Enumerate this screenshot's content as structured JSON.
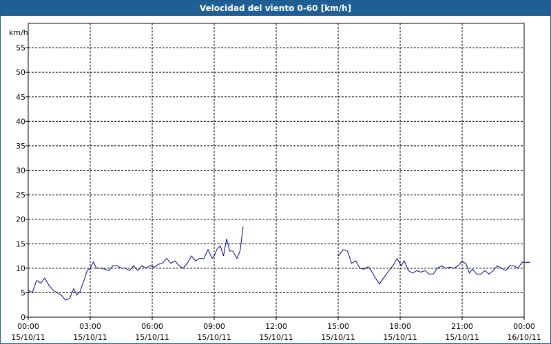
{
  "window": {
    "title": "Velocidad del viento 0-60 [km/h]"
  },
  "chart_data": {
    "type": "line",
    "title": "Velocidad del viento 0-60 [km/h]",
    "ylabel": "km/h",
    "xlabel": "",
    "ylim": [
      0,
      60
    ],
    "xlim": [
      0,
      24
    ],
    "grid": true,
    "y_ticks": [
      0,
      5,
      10,
      15,
      20,
      25,
      30,
      35,
      40,
      45,
      50,
      55
    ],
    "x_ticks": [
      {
        "x": 0,
        "time": "00:00",
        "date": "15/10/11"
      },
      {
        "x": 3,
        "time": "03:00",
        "date": "15/10/11"
      },
      {
        "x": 6,
        "time": "06:00",
        "date": "15/10/11"
      },
      {
        "x": 9,
        "time": "09:00",
        "date": "15/10/11"
      },
      {
        "x": 12,
        "time": "12:00",
        "date": "15/10/11"
      },
      {
        "x": 15,
        "time": "15:00",
        "date": "15/10/11"
      },
      {
        "x": 18,
        "time": "18:00",
        "date": "15/10/11"
      },
      {
        "x": 21,
        "time": "21:00",
        "date": "15/10/11"
      },
      {
        "x": 24,
        "time": "00:00",
        "date": "16/10/11"
      }
    ],
    "series": [
      {
        "color": "#00008b",
        "segments": [
          [
            [
              0,
              5.5
            ],
            [
              0.2,
              5
            ],
            [
              0.4,
              7.5
            ],
            [
              0.6,
              7
            ],
            [
              0.8,
              8
            ],
            [
              1.0,
              6.5
            ],
            [
              1.2,
              5.5
            ],
            [
              1.4,
              5
            ],
            [
              1.6,
              4.5
            ],
            [
              1.8,
              3.5
            ],
            [
              2.0,
              3.8
            ],
            [
              2.2,
              5.8
            ],
            [
              2.35,
              4.5
            ],
            [
              2.5,
              5.2
            ],
            [
              2.7,
              7.5
            ],
            [
              2.85,
              9.5
            ],
            [
              3.0,
              10
            ],
            [
              3.15,
              11.3
            ],
            [
              3.3,
              10
            ],
            [
              3.5,
              10
            ],
            [
              3.7,
              9.8
            ],
            [
              3.9,
              9.5
            ],
            [
              4.1,
              10.5
            ],
            [
              4.3,
              10.5
            ],
            [
              4.5,
              10
            ],
            [
              4.7,
              10
            ],
            [
              4.9,
              9.5
            ],
            [
              5.1,
              10.5
            ],
            [
              5.3,
              9.5
            ],
            [
              5.5,
              10.5
            ],
            [
              5.7,
              10
            ],
            [
              5.9,
              10.5
            ],
            [
              6.1,
              10.2
            ],
            [
              6.3,
              10.8
            ],
            [
              6.5,
              11
            ],
            [
              6.7,
              12
            ],
            [
              6.9,
              11
            ],
            [
              7.1,
              11.5
            ],
            [
              7.3,
              10.5
            ],
            [
              7.5,
              10
            ],
            [
              7.7,
              11
            ],
            [
              7.9,
              12.5
            ],
            [
              8.1,
              11.5
            ],
            [
              8.3,
              12
            ],
            [
              8.5,
              12
            ],
            [
              8.7,
              13.8
            ],
            [
              8.9,
              12
            ],
            [
              9.0,
              12.5
            ],
            [
              9.15,
              14
            ],
            [
              9.3,
              14.5
            ],
            [
              9.45,
              12.5
            ],
            [
              9.6,
              16
            ],
            [
              9.75,
              13.5
            ],
            [
              9.9,
              13.5
            ],
            [
              10.1,
              12
            ],
            [
              10.25,
              13.5
            ],
            [
              10.4,
              18.5
            ]
          ],
          [
            [
              15.0,
              12.5
            ],
            [
              15.25,
              13.8
            ],
            [
              15.45,
              13.5
            ],
            [
              15.65,
              11
            ],
            [
              15.85,
              11.5
            ],
            [
              16.05,
              10
            ],
            [
              16.25,
              9.8
            ],
            [
              16.45,
              10.3
            ],
            [
              16.6,
              9.5
            ],
            [
              16.8,
              8
            ],
            [
              17.0,
              6.8
            ],
            [
              17.2,
              8
            ],
            [
              17.45,
              9.5
            ],
            [
              17.65,
              10.5
            ],
            [
              17.85,
              12
            ],
            [
              18.05,
              10.5
            ],
            [
              18.2,
              11.5
            ],
            [
              18.4,
              9.5
            ],
            [
              18.6,
              9
            ],
            [
              18.8,
              9.5
            ],
            [
              19.0,
              9.2
            ],
            [
              19.2,
              9.5
            ],
            [
              19.4,
              8.8
            ],
            [
              19.6,
              8.8
            ],
            [
              19.8,
              10
            ],
            [
              20.0,
              10.5
            ],
            [
              20.2,
              10
            ],
            [
              20.4,
              10.2
            ],
            [
              20.6,
              10
            ],
            [
              20.8,
              10.5
            ],
            [
              21.0,
              11.5
            ],
            [
              21.2,
              10.8
            ],
            [
              21.35,
              9
            ],
            [
              21.5,
              9.8
            ],
            [
              21.7,
              8.8
            ],
            [
              21.9,
              8.8
            ],
            [
              22.1,
              9.5
            ],
            [
              22.3,
              8.8
            ],
            [
              22.5,
              9.5
            ],
            [
              22.7,
              10.5
            ],
            [
              22.9,
              10
            ],
            [
              23.1,
              9.5
            ],
            [
              23.3,
              10.5
            ],
            [
              23.5,
              10.5
            ],
            [
              23.7,
              10
            ],
            [
              23.9,
              11.2
            ],
            [
              24.1,
              11.2
            ],
            [
              24.3,
              11.2
            ]
          ]
        ]
      }
    ]
  }
}
